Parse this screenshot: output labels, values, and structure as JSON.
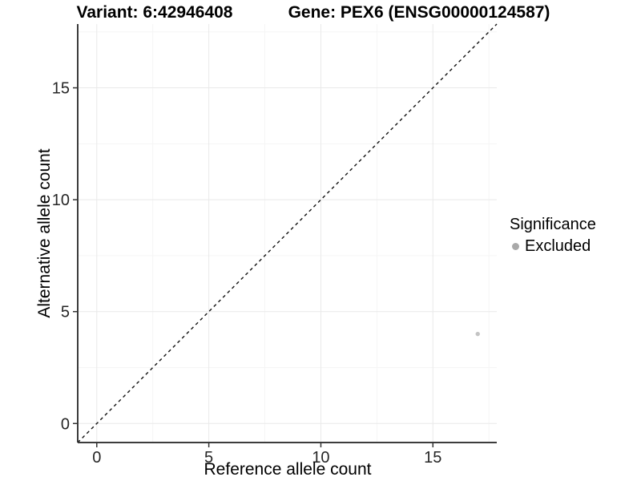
{
  "titles": {
    "left": "Variant: 6:42946408",
    "right": "Gene: PEX6 (ENSG00000124587)"
  },
  "chart_data": {
    "type": "scatter",
    "xlabel": "Reference allele count",
    "ylabel": "Alternative allele count",
    "xlim": [
      -0.85,
      17.85
    ],
    "ylim": [
      -0.85,
      17.85
    ],
    "xticks": [
      0,
      5,
      10,
      15
    ],
    "yticks": [
      0,
      5,
      10,
      15
    ],
    "xticks_minor": [
      2.5,
      7.5,
      12.5,
      17.5
    ],
    "yticks_minor": [
      2.5,
      7.5,
      12.5,
      17.5
    ],
    "grid": "major-and-minor, very light gray on white",
    "points": [
      {
        "x": 17,
        "y": 4,
        "series": "Excluded"
      }
    ],
    "reference_line": {
      "slope": 1,
      "intercept": 0,
      "style": "dashed",
      "color": "#111111"
    },
    "legend": {
      "title": "Significance",
      "position": "right",
      "entries": [
        {
          "label": "Excluded",
          "color": "#a9a9a9"
        }
      ]
    },
    "colors": {
      "point": "#c4c4c4",
      "grid_major": "#e9e9e9",
      "grid_minor": "#f5f5f5",
      "axis_line": "#3c3c3c",
      "tick_mark": "#333333",
      "tick_text": "#262626"
    }
  }
}
